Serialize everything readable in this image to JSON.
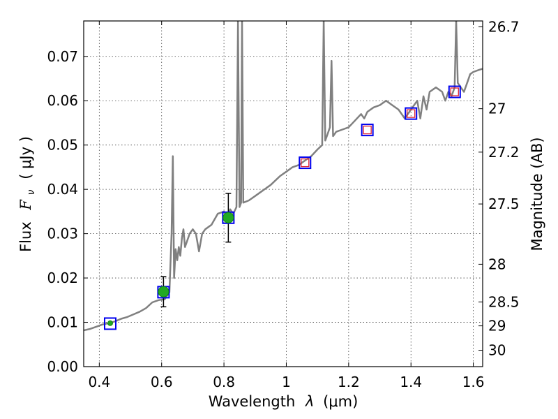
{
  "chart_data": {
    "type": "scatter",
    "title": "",
    "xlabel": "Wavelength",
    "xlabel_symbol": "λ",
    "xlabel_unit": "(μm)",
    "ylabel_left": "Flux",
    "ylabel_symbol": "F",
    "ylabel_subscript": "ν",
    "ylabel_unit": "( μJy )",
    "ylabel_right": "Magnitude (AB)",
    "xlim": [
      0.35,
      1.63
    ],
    "ylim": [
      0.0,
      0.078
    ],
    "x_ticks": [
      0.4,
      0.6,
      0.8,
      1.0,
      1.2,
      1.4,
      1.6
    ],
    "x_tick_labels": [
      "0.4",
      "0.6",
      "0.8",
      "1",
      "1.2",
      "1.4",
      "1.6"
    ],
    "y_ticks": [
      0.0,
      0.01,
      0.02,
      0.03,
      0.04,
      0.05,
      0.06,
      0.07
    ],
    "y_tick_labels": [
      "0.00",
      "0.01",
      "0.02",
      "0.03",
      "0.04",
      "0.05",
      "0.06",
      "0.07"
    ],
    "right_ticks": [
      {
        "label": "26.7",
        "flux": 0.0767
      },
      {
        "label": "27",
        "flux": 0.0582
      },
      {
        "label": "27.2",
        "flux": 0.0484
      },
      {
        "label": "27.5",
        "flux": 0.0367
      },
      {
        "label": "28",
        "flux": 0.0231
      },
      {
        "label": "28.5",
        "flux": 0.0146
      },
      {
        "label": "29",
        "flux": 0.0092
      },
      {
        "label": "30",
        "flux": 0.0037
      }
    ],
    "grid": true,
    "series": [
      {
        "name": "model spectrum",
        "kind": "line",
        "color": "#808080",
        "points": [
          [
            0.35,
            0.0082
          ],
          [
            0.37,
            0.0085
          ],
          [
            0.39,
            0.009
          ],
          [
            0.41,
            0.0095
          ],
          [
            0.43,
            0.0098
          ],
          [
            0.45,
            0.0102
          ],
          [
            0.47,
            0.0108
          ],
          [
            0.49,
            0.0112
          ],
          [
            0.51,
            0.0118
          ],
          [
            0.53,
            0.0124
          ],
          [
            0.55,
            0.0132
          ],
          [
            0.57,
            0.0145
          ],
          [
            0.59,
            0.015
          ],
          [
            0.61,
            0.0152
          ],
          [
            0.625,
            0.0168
          ],
          [
            0.632,
            0.03
          ],
          [
            0.636,
            0.0475
          ],
          [
            0.64,
            0.02
          ],
          [
            0.645,
            0.0265
          ],
          [
            0.65,
            0.024
          ],
          [
            0.655,
            0.027
          ],
          [
            0.66,
            0.025
          ],
          [
            0.665,
            0.029
          ],
          [
            0.67,
            0.031
          ],
          [
            0.675,
            0.027
          ],
          [
            0.68,
            0.028
          ],
          [
            0.69,
            0.03
          ],
          [
            0.7,
            0.031
          ],
          [
            0.71,
            0.03
          ],
          [
            0.72,
            0.026
          ],
          [
            0.73,
            0.03
          ],
          [
            0.74,
            0.031
          ],
          [
            0.76,
            0.032
          ],
          [
            0.78,
            0.0345
          ],
          [
            0.8,
            0.035
          ],
          [
            0.81,
            0.034
          ],
          [
            0.82,
            0.0355
          ],
          [
            0.83,
            0.0345
          ],
          [
            0.84,
            0.036
          ],
          [
            0.845,
            0.078
          ],
          [
            0.85,
            0.036
          ],
          [
            0.855,
            0.037
          ],
          [
            0.858,
            0.078
          ],
          [
            0.862,
            0.037
          ],
          [
            0.88,
            0.0375
          ],
          [
            0.9,
            0.0385
          ],
          [
            0.92,
            0.0395
          ],
          [
            0.95,
            0.041
          ],
          [
            0.98,
            0.043
          ],
          [
            1.0,
            0.044
          ],
          [
            1.02,
            0.045
          ],
          [
            1.04,
            0.0455
          ],
          [
            1.06,
            0.0465
          ],
          [
            1.08,
            0.0475
          ],
          [
            1.1,
            0.049
          ],
          [
            1.115,
            0.05
          ],
          [
            1.12,
            0.078
          ],
          [
            1.125,
            0.051
          ],
          [
            1.13,
            0.052
          ],
          [
            1.14,
            0.054
          ],
          [
            1.145,
            0.069
          ],
          [
            1.15,
            0.052
          ],
          [
            1.16,
            0.053
          ],
          [
            1.18,
            0.0535
          ],
          [
            1.2,
            0.054
          ],
          [
            1.22,
            0.0555
          ],
          [
            1.24,
            0.057
          ],
          [
            1.25,
            0.056
          ],
          [
            1.26,
            0.0575
          ],
          [
            1.28,
            0.0585
          ],
          [
            1.3,
            0.059
          ],
          [
            1.32,
            0.06
          ],
          [
            1.34,
            0.059
          ],
          [
            1.36,
            0.058
          ],
          [
            1.38,
            0.056
          ],
          [
            1.4,
            0.058
          ],
          [
            1.42,
            0.06
          ],
          [
            1.43,
            0.056
          ],
          [
            1.44,
            0.061
          ],
          [
            1.45,
            0.058
          ],
          [
            1.46,
            0.062
          ],
          [
            1.48,
            0.063
          ],
          [
            1.5,
            0.062
          ],
          [
            1.51,
            0.06
          ],
          [
            1.52,
            0.062
          ],
          [
            1.53,
            0.061
          ],
          [
            1.54,
            0.063
          ],
          [
            1.545,
            0.078
          ],
          [
            1.55,
            0.064
          ],
          [
            1.56,
            0.063
          ],
          [
            1.57,
            0.062
          ],
          [
            1.58,
            0.064
          ],
          [
            1.59,
            0.066
          ],
          [
            1.6,
            0.0665
          ],
          [
            1.62,
            0.067
          ],
          [
            1.63,
            0.0672
          ]
        ]
      },
      {
        "name": "model photometry",
        "kind": "square-marker",
        "edge_color": "#0000ee",
        "x": [
          0.435,
          0.606,
          0.814,
          1.06,
          1.26,
          1.4,
          1.54
        ],
        "y": [
          0.0097,
          0.0168,
          0.0336,
          0.046,
          0.0534,
          0.0571,
          0.062
        ]
      },
      {
        "name": "observed photometry",
        "kind": "circle-errorbar",
        "color": "#22aa22",
        "x": [
          0.435,
          0.606,
          0.814
        ],
        "y": [
          0.0098,
          0.0169,
          0.0336
        ],
        "yerr": [
          0.0005,
          0.0034,
          0.0055
        ]
      },
      {
        "name": "upper limits",
        "kind": "open-square",
        "edge_color": "#dd2233",
        "x": [
          1.06,
          1.26,
          1.4,
          1.54
        ],
        "y": [
          0.046,
          0.0534,
          0.0571,
          0.062
        ]
      }
    ]
  }
}
